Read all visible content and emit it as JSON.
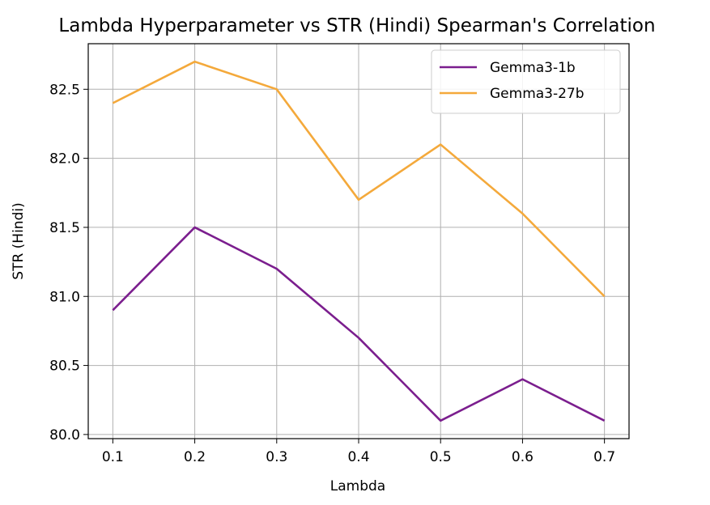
{
  "chart_data": {
    "type": "line",
    "title": "Lambda Hyperparameter vs STR (Hindi) Spearman's Correlation",
    "xlabel": "Lambda",
    "ylabel": "STR (Hindi)",
    "x": [
      0.1,
      0.2,
      0.3,
      0.4,
      0.5,
      0.6,
      0.7
    ],
    "x_tick_labels": [
      "0.1",
      "0.2",
      "0.3",
      "0.4",
      "0.5",
      "0.6",
      "0.7"
    ],
    "y_ticks": [
      80.0,
      80.5,
      81.0,
      81.5,
      82.0,
      82.5
    ],
    "y_tick_labels": [
      "80.0",
      "80.5",
      "81.0",
      "81.5",
      "82.0",
      "82.5"
    ],
    "xlim": [
      0.07,
      0.73
    ],
    "ylim": [
      79.97,
      82.83
    ],
    "grid": true,
    "legend_position": "top-right",
    "series": [
      {
        "name": "Gemma3-1b",
        "color": "#7b1e8e",
        "values": [
          80.9,
          81.5,
          81.2,
          80.7,
          80.1,
          80.4,
          80.1
        ]
      },
      {
        "name": "Gemma3-27b",
        "color": "#f4a93b",
        "values": [
          82.4,
          82.7,
          82.5,
          81.7,
          82.1,
          81.6,
          81.0
        ]
      }
    ]
  }
}
